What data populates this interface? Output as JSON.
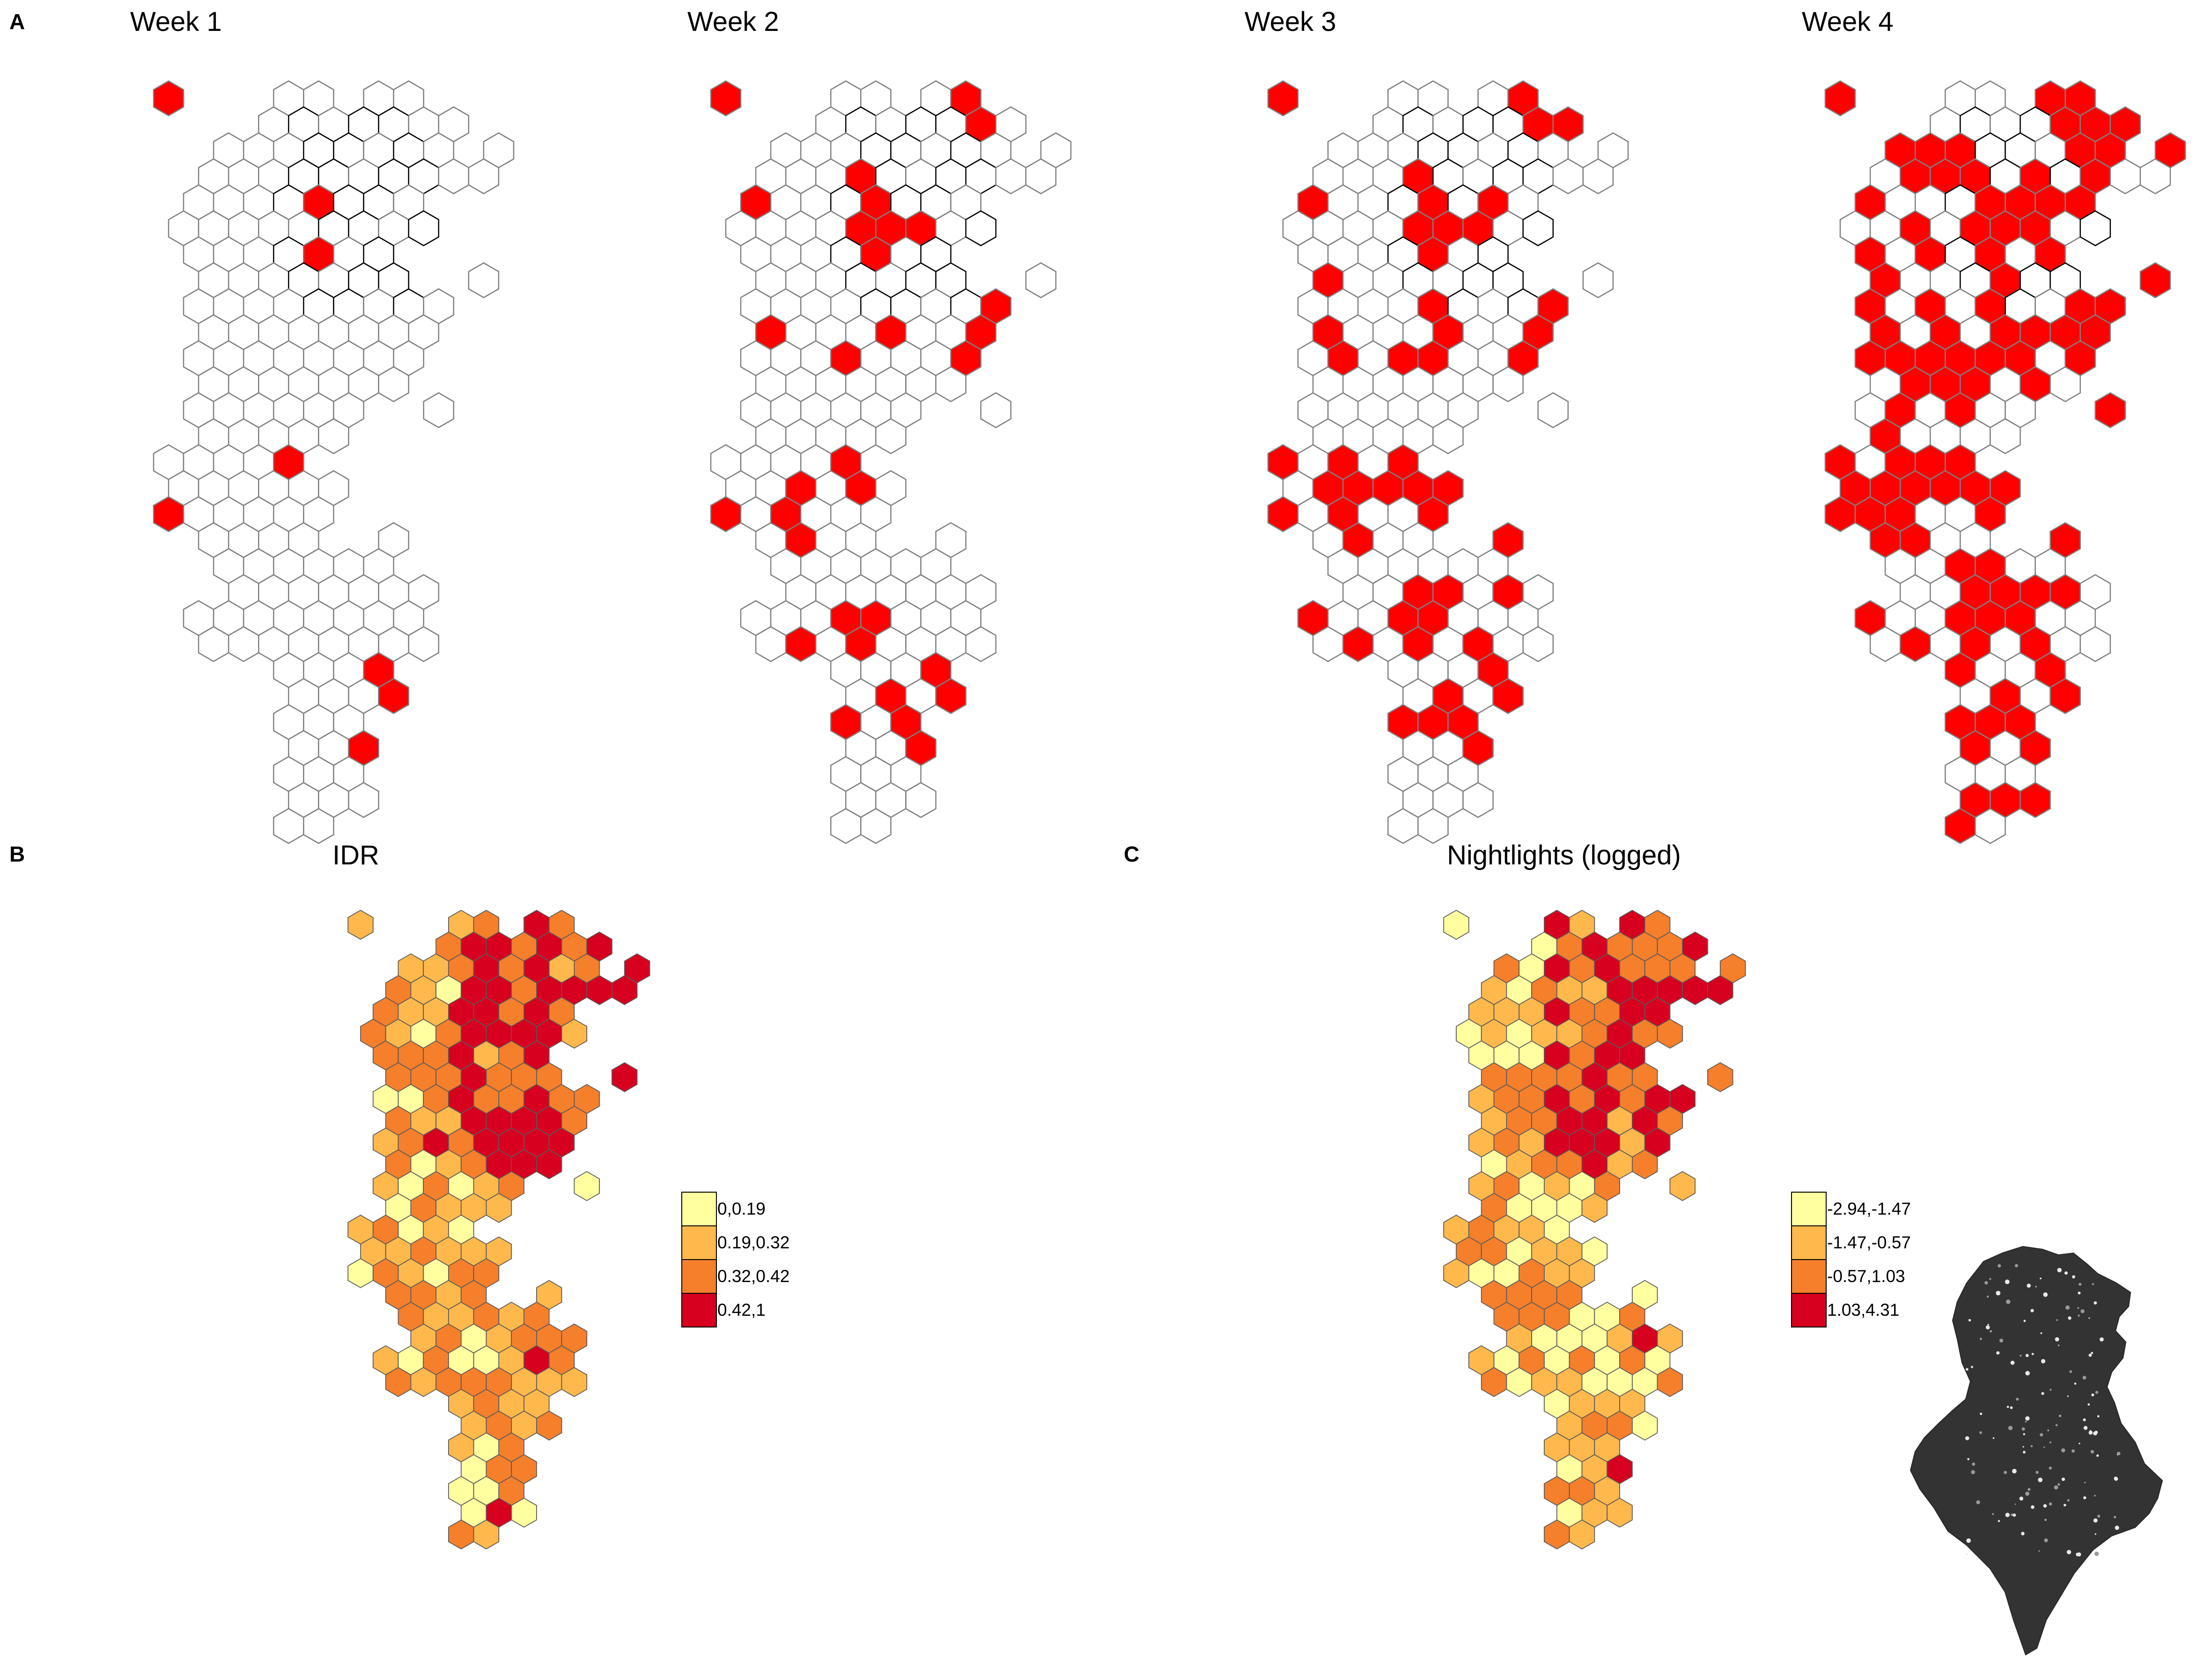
{
  "colors": {
    "hex_empty_fill": "#ffffff",
    "hex_empty_stroke": "#7f7f7f",
    "hex_infected": "#ff0000",
    "region_outline": "#000000",
    "scale": [
      "#ffffa0",
      "#feb84c",
      "#f57f2b",
      "#d7001f"
    ],
    "nightlights_background": "#333333"
  },
  "panel_a": {
    "label": "A",
    "weeks": [
      {
        "title": "Week 1"
      },
      {
        "title": "Week 2"
      },
      {
        "title": "Week 3"
      },
      {
        "title": "Week 4"
      }
    ],
    "infected_share_by_week": [
      0.05,
      0.22,
      0.35,
      0.58
    ]
  },
  "panel_b": {
    "label": "B",
    "title": "IDR",
    "legend": [
      "0,0.19",
      "0.19,0.32",
      "0.32,0.42",
      "0.42,1"
    ]
  },
  "panel_c": {
    "label": "C",
    "title": "Nightlights (logged)",
    "legend": [
      "-2.94,-1.47",
      "-1.47,-0.57",
      "-0.57,1.03",
      "1.03,4.31"
    ]
  },
  "inset": {
    "name": "nightlights-satellite-image-tunisia"
  }
}
